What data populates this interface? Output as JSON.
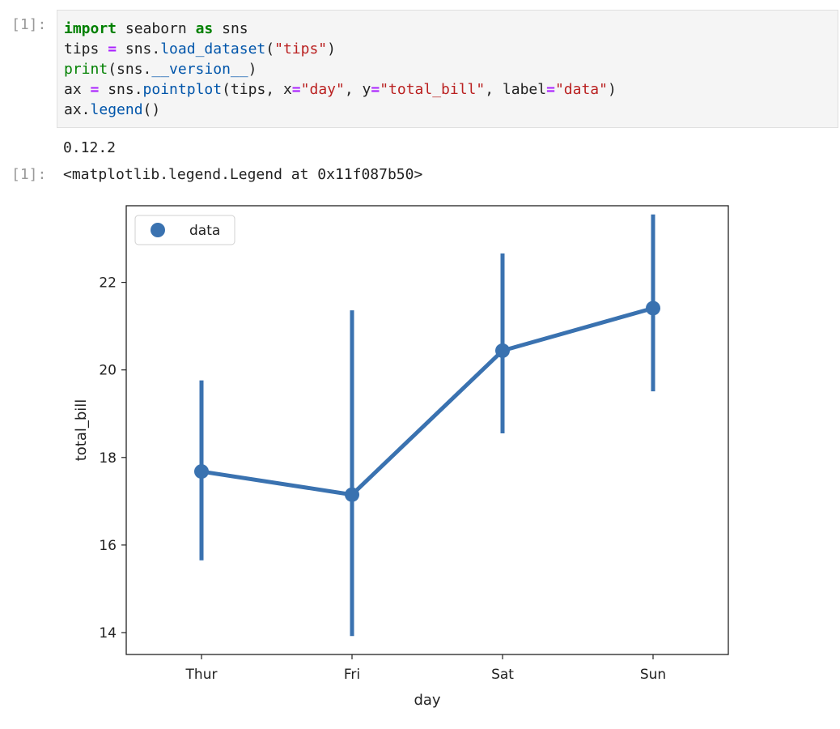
{
  "notebook": {
    "in_prompt": "[1]:",
    "out_prompt": "[1]:",
    "code_lines": [
      [
        {
          "t": "import",
          "c": "kw"
        },
        {
          "t": " seaborn ",
          "c": ""
        },
        {
          "t": "as",
          "c": "kw"
        },
        {
          "t": " sns",
          "c": ""
        }
      ],
      [
        {
          "t": "tips ",
          "c": ""
        },
        {
          "t": "=",
          "c": "op"
        },
        {
          "t": " sns.",
          "c": ""
        },
        {
          "t": "load_dataset",
          "c": "fn"
        },
        {
          "t": "(",
          "c": ""
        },
        {
          "t": "\"tips\"",
          "c": "str"
        },
        {
          "t": ")",
          "c": ""
        }
      ],
      [
        {
          "t": "print",
          "c": "bi"
        },
        {
          "t": "(sns.",
          "c": ""
        },
        {
          "t": "__version__",
          "c": "fn"
        },
        {
          "t": ")",
          "c": ""
        }
      ],
      [
        {
          "t": "ax ",
          "c": ""
        },
        {
          "t": "=",
          "c": "op"
        },
        {
          "t": " sns.",
          "c": ""
        },
        {
          "t": "pointplot",
          "c": "fn"
        },
        {
          "t": "(tips, x",
          "c": ""
        },
        {
          "t": "=",
          "c": "op"
        },
        {
          "t": "\"day\"",
          "c": "str"
        },
        {
          "t": ", y",
          "c": ""
        },
        {
          "t": "=",
          "c": "op"
        },
        {
          "t": "\"total_bill\"",
          "c": "str"
        },
        {
          "t": ", label",
          "c": ""
        },
        {
          "t": "=",
          "c": "op"
        },
        {
          "t": "\"data\"",
          "c": "str"
        },
        {
          "t": ")",
          "c": ""
        }
      ],
      [
        {
          "t": "ax.",
          "c": ""
        },
        {
          "t": "legend",
          "c": "fn"
        },
        {
          "t": "()",
          "c": ""
        }
      ]
    ],
    "stdout": "0.12.2",
    "result_repr": "<matplotlib.legend.Legend at 0x11f087b50>"
  },
  "chart_data": {
    "type": "line",
    "categories": [
      "Thur",
      "Fri",
      "Sat",
      "Sun"
    ],
    "series": [
      {
        "name": "data",
        "color": "#3a72b0",
        "values": [
          17.68,
          17.15,
          20.44,
          21.41
        ],
        "ci_low": [
          15.65,
          13.92,
          18.55,
          19.51
        ],
        "ci_high": [
          19.76,
          21.36,
          22.66,
          23.55
        ]
      }
    ],
    "xlabel": "day",
    "ylabel": "total_bill",
    "ylim": [
      13.5,
      23.75
    ],
    "yticks": [
      14,
      16,
      18,
      20,
      22
    ],
    "grid": false,
    "legend_position": "top-left"
  }
}
